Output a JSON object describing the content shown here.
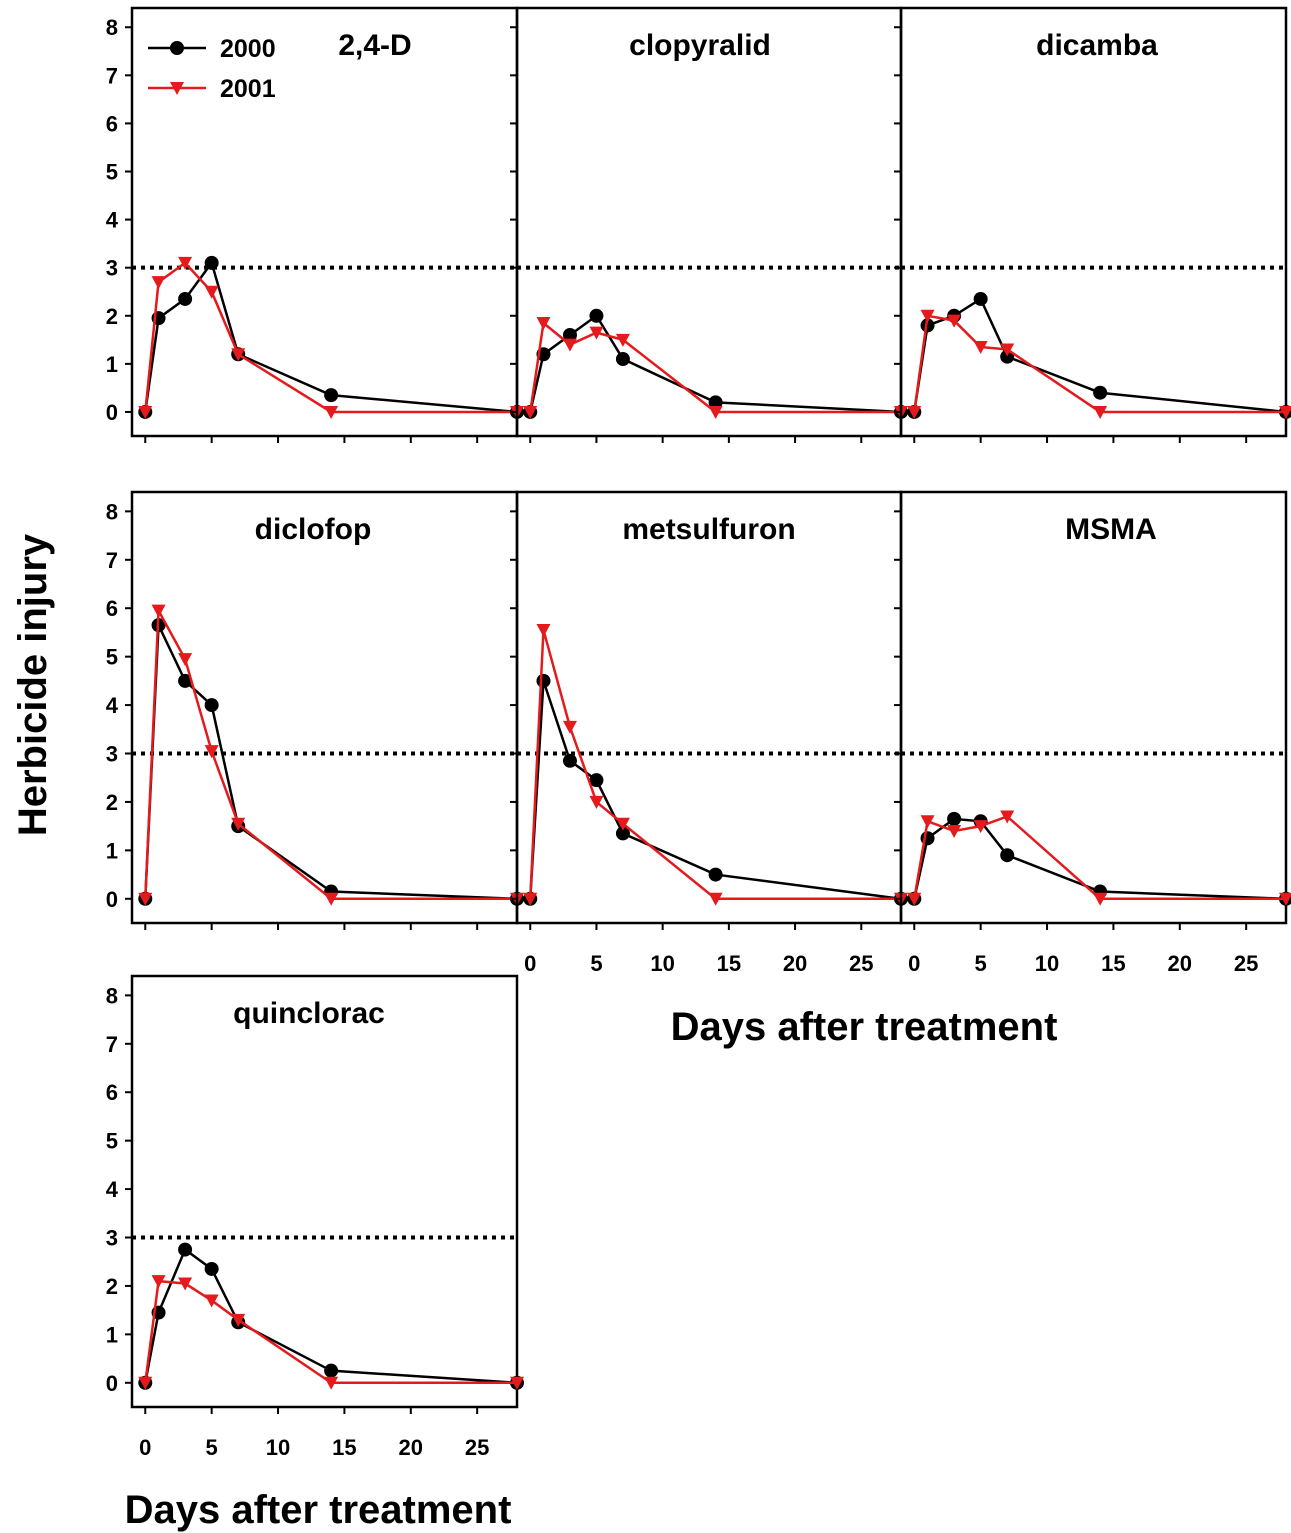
{
  "figure": {
    "ylabel": "Herbicide injury",
    "xlabel": "Days after treatment",
    "reference_line_y": 3,
    "colors": {
      "2000": "#000000",
      "2001": "#e41a1c"
    }
  },
  "legend": {
    "items": [
      {
        "label": "2000",
        "color": "#000000",
        "marker": "circle"
      },
      {
        "label": "2001",
        "color": "#e41a1c",
        "marker": "triangle-down"
      }
    ]
  },
  "chart_data": [
    {
      "type": "line",
      "title": "2,4-D",
      "x": [
        0,
        1,
        3,
        5,
        7,
        14,
        28
      ],
      "series": [
        {
          "name": "2000",
          "values": [
            0,
            1.95,
            2.35,
            3.1,
            1.2,
            0.35,
            0
          ]
        },
        {
          "name": "2001",
          "values": [
            0,
            2.7,
            3.1,
            2.5,
            1.2,
            0,
            0
          ]
        }
      ],
      "xlim": [
        -1,
        28
      ],
      "ylim": [
        -0.5,
        8.4
      ],
      "yticks": [
        0,
        1,
        2,
        3,
        4,
        5,
        6,
        7,
        8
      ]
    },
    {
      "type": "line",
      "title": "clopyralid",
      "x": [
        0,
        1,
        3,
        5,
        7,
        14,
        28
      ],
      "series": [
        {
          "name": "2000",
          "values": [
            0,
            1.2,
            1.6,
            2.0,
            1.1,
            0.2,
            0
          ]
        },
        {
          "name": "2001",
          "values": [
            0,
            1.85,
            1.4,
            1.65,
            1.5,
            0,
            0
          ]
        }
      ],
      "xlim": [
        -1,
        28
      ],
      "ylim": [
        -0.5,
        8.4
      ]
    },
    {
      "type": "line",
      "title": "dicamba",
      "x": [
        0,
        1,
        3,
        5,
        7,
        14,
        28
      ],
      "series": [
        {
          "name": "2000",
          "values": [
            0,
            1.8,
            2.0,
            2.35,
            1.15,
            0.4,
            0
          ]
        },
        {
          "name": "2001",
          "values": [
            0,
            2.0,
            1.9,
            1.35,
            1.3,
            0,
            0
          ]
        }
      ],
      "xlim": [
        -1,
        28
      ],
      "ylim": [
        -0.5,
        8.4
      ]
    },
    {
      "type": "line",
      "title": "diclofop",
      "x": [
        0,
        1,
        3,
        5,
        7,
        14,
        28
      ],
      "series": [
        {
          "name": "2000",
          "values": [
            0,
            5.65,
            4.5,
            4.0,
            1.5,
            0.15,
            0
          ]
        },
        {
          "name": "2001",
          "values": [
            0,
            5.95,
            4.95,
            3.05,
            1.55,
            0,
            0
          ]
        }
      ],
      "xlim": [
        -1,
        28
      ],
      "ylim": [
        -0.5,
        8.4
      ],
      "yticks": [
        0,
        1,
        2,
        3,
        4,
        5,
        6,
        7,
        8
      ]
    },
    {
      "type": "line",
      "title": "metsulfuron",
      "x": [
        0,
        1,
        3,
        5,
        7,
        14,
        28
      ],
      "series": [
        {
          "name": "2000",
          "values": [
            0,
            4.5,
            2.85,
            2.45,
            1.35,
            0.5,
            0
          ]
        },
        {
          "name": "2001",
          "values": [
            0,
            5.55,
            3.55,
            2.0,
            1.55,
            0,
            0
          ]
        }
      ],
      "xlim": [
        -1,
        28
      ],
      "ylim": [
        -0.5,
        8.4
      ],
      "xticks": [
        0,
        5,
        10,
        15,
        20,
        25
      ]
    },
    {
      "type": "line",
      "title": "MSMA",
      "x": [
        0,
        1,
        3,
        5,
        7,
        14,
        28
      ],
      "series": [
        {
          "name": "2000",
          "values": [
            0,
            1.25,
            1.65,
            1.6,
            0.9,
            0.15,
            0
          ]
        },
        {
          "name": "2001",
          "values": [
            0,
            1.6,
            1.4,
            1.5,
            1.7,
            0,
            0
          ]
        }
      ],
      "xlim": [
        -1,
        28
      ],
      "ylim": [
        -0.5,
        8.4
      ],
      "xticks": [
        0,
        5,
        10,
        15,
        20,
        25
      ]
    },
    {
      "type": "line",
      "title": "quinclorac",
      "x": [
        0,
        1,
        3,
        5,
        7,
        14,
        28
      ],
      "series": [
        {
          "name": "2000",
          "values": [
            0,
            1.45,
            2.75,
            2.35,
            1.25,
            0.25,
            0
          ]
        },
        {
          "name": "2001",
          "values": [
            0,
            2.1,
            2.05,
            1.7,
            1.3,
            0,
            0
          ]
        }
      ],
      "xlim": [
        -1,
        28
      ],
      "ylim": [
        -0.5,
        8.4
      ],
      "yticks": [
        0,
        1,
        2,
        3,
        4,
        5,
        6,
        7,
        8
      ],
      "xticks": [
        0,
        5,
        10,
        15,
        20,
        25
      ]
    }
  ]
}
